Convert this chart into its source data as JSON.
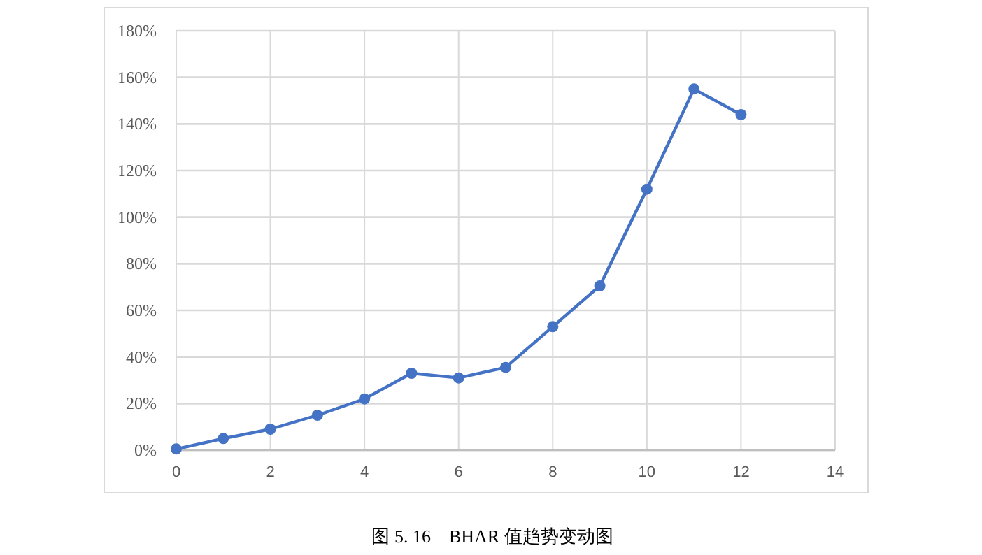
{
  "chart_data": {
    "type": "line",
    "title": "图 5. 16　BHAR 值趋势变动图",
    "x": [
      0,
      1,
      2,
      3,
      4,
      5,
      6,
      7,
      8,
      9,
      10,
      11,
      12
    ],
    "series": [
      {
        "color": "#4472c4",
        "values": [
          0.5,
          5,
          9,
          15,
          22,
          33,
          31,
          35.5,
          53,
          70.5,
          112,
          155,
          144
        ]
      }
    ],
    "xlim": [
      0,
      14
    ],
    "xticks": [
      0,
      2,
      4,
      6,
      8,
      10,
      12,
      14
    ],
    "ylim": [
      0,
      180
    ],
    "yticks": [
      {
        "value": 0,
        "label": "0%"
      },
      {
        "value": 20,
        "label": "20%"
      },
      {
        "value": 40,
        "label": "40%"
      },
      {
        "value": 60,
        "label": "60%"
      },
      {
        "value": 80,
        "label": "80%"
      },
      {
        "value": 100,
        "label": "100%"
      },
      {
        "value": 120,
        "label": "120%"
      },
      {
        "value": 140,
        "label": "140%"
      },
      {
        "value": 160,
        "label": "160%"
      },
      {
        "value": 180,
        "label": "180%"
      }
    ],
    "grid": true,
    "marker": "circle",
    "line_style": "solid"
  }
}
